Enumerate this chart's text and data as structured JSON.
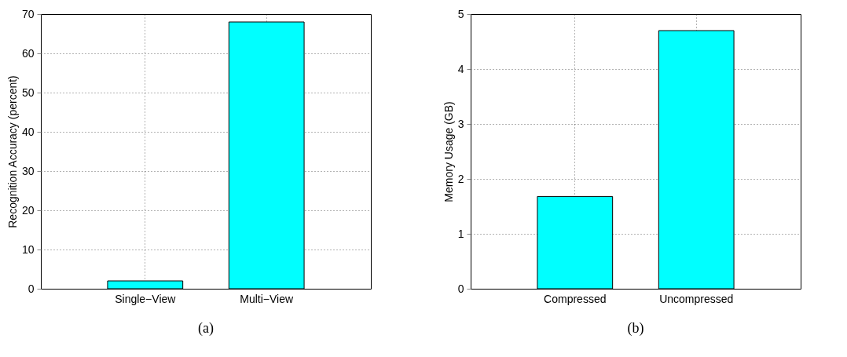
{
  "chart_data": [
    {
      "type": "bar",
      "title": "(a)",
      "ylabel": "Recognition Accuracy (percent)",
      "categories": [
        "Single−View",
        "Multi−View"
      ],
      "values": [
        2,
        68
      ],
      "color": "#00ffff",
      "ylim": [
        0,
        70
      ],
      "yticks": [
        0,
        10,
        20,
        30,
        40,
        50,
        60,
        70
      ],
      "grid": true
    },
    {
      "type": "bar",
      "title": "(b)",
      "ylabel": "Memory Usage (GB)",
      "categories": [
        "Compressed",
        "Uncompressed"
      ],
      "values": [
        1.68,
        4.7
      ],
      "color": "#00ffff",
      "ylim": [
        0,
        5
      ],
      "yticks": [
        0,
        1,
        2,
        3,
        4,
        5
      ],
      "grid": true
    }
  ]
}
